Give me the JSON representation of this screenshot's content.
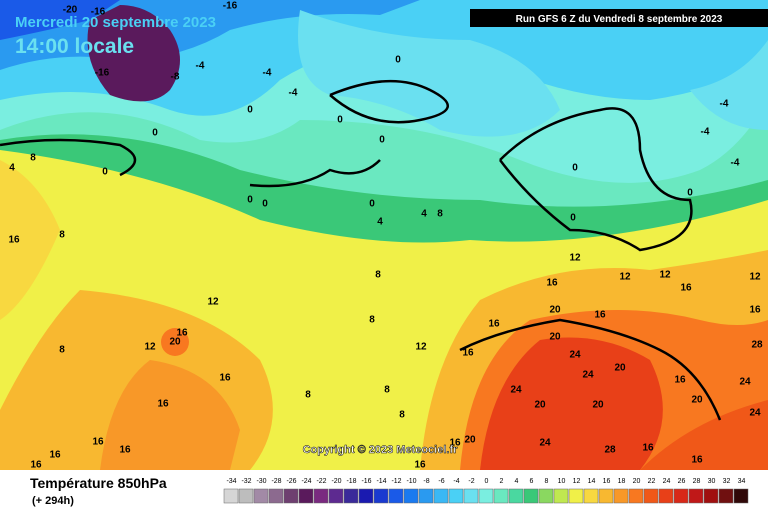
{
  "header": {
    "date": "Mercredi 20 septembre 2023",
    "time": "14:00 locale",
    "run": "Run GFS 6 Z du Vendredi 8 septembre 2023"
  },
  "map": {
    "copyright": "Copyright © 2023 Meteociel.fr",
    "contour_labels": [
      -20,
      -16,
      -16,
      -16,
      -8,
      -4,
      -4,
      -4,
      0,
      0,
      0,
      8,
      4,
      0,
      0,
      0,
      4,
      0,
      0,
      0,
      4,
      8,
      0,
      0,
      0,
      -4,
      -4,
      -4,
      16,
      8,
      8,
      12,
      12,
      20,
      16,
      8,
      8,
      12,
      16,
      16,
      12,
      16,
      20,
      16,
      12,
      12,
      16,
      12,
      16,
      28,
      24,
      24,
      20,
      20,
      24,
      16,
      20,
      24,
      20,
      20,
      24,
      28,
      16,
      16,
      16,
      16,
      16,
      16,
      16,
      16,
      8,
      8,
      8,
      16,
      20,
      16,
      24
    ]
  },
  "footer": {
    "title": "Température 850hPa",
    "lead": "(+ 294h)",
    "scale": {
      "ticks": [
        -34,
        -32,
        -30,
        -28,
        -26,
        -24,
        -22,
        -20,
        -18,
        -16,
        -14,
        -12,
        -10,
        -8,
        -6,
        -4,
        -2,
        0,
        2,
        4,
        6,
        8,
        10,
        12,
        14,
        16,
        18,
        20,
        22,
        24,
        26,
        28,
        30,
        32,
        34
      ],
      "colors": [
        "#d6d6d6",
        "#bdbdbd",
        "#a28aa6",
        "#8c6a8f",
        "#6e3f70",
        "#5a1a5c",
        "#7a2a80",
        "#5d2a90",
        "#3a2a9a",
        "#1a1ab0",
        "#1a3ad0",
        "#1a5ae8",
        "#1a7af0",
        "#2a9af0",
        "#3ab8f5",
        "#4ad0f5",
        "#6ae0f0",
        "#7aeee0",
        "#6ae8c0",
        "#4ad8a0",
        "#3ac878",
        "#8ad860",
        "#c0e850",
        "#f0f048",
        "#f8d840",
        "#f8b830",
        "#f89828",
        "#f87820",
        "#f05818",
        "#e84018",
        "#d82818",
        "#c01818",
        "#a01010",
        "#701010",
        "#300808"
      ]
    }
  }
}
